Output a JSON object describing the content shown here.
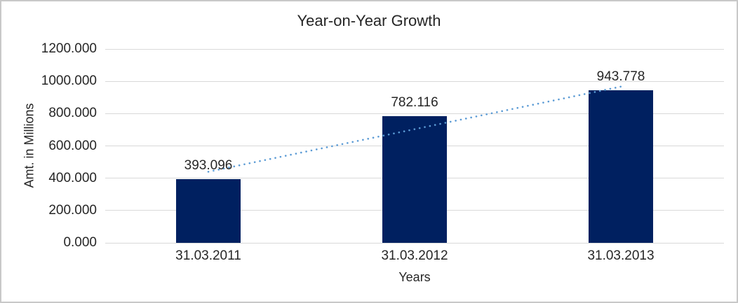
{
  "colors": {
    "background": "#ffffff",
    "frame_border": "#c8c8c8",
    "gridline": "#d9d9d9",
    "text": "#262626",
    "bar": "#002060",
    "trendline": "#5b9bd5"
  },
  "chart_data": {
    "type": "bar",
    "title": "Year-on-Year Growth",
    "xlabel": "Years",
    "ylabel": "Amt. in Millions",
    "categories": [
      "31.03.2011",
      "31.03.2012",
      "31.03.2013"
    ],
    "values": [
      393.096,
      782.116,
      943.778
    ],
    "bar_labels": [
      "393.096",
      "782.116",
      "943.778"
    ],
    "ylim": [
      0,
      1200
    ],
    "yticks": [
      {
        "label": "0.000",
        "value": 0
      },
      {
        "label": "200.000",
        "value": 200
      },
      {
        "label": "400.000",
        "value": 400
      },
      {
        "label": "600.000",
        "value": 600
      },
      {
        "label": "800.000",
        "value": 800
      },
      {
        "label": "1000.000",
        "value": 1000
      },
      {
        "label": "1200.000",
        "value": 1200
      }
    ],
    "grid": "horizontal",
    "legend": "none",
    "trendline": {
      "type": "linear",
      "style": "dotted",
      "start_value": 440,
      "end_value": 967
    }
  }
}
